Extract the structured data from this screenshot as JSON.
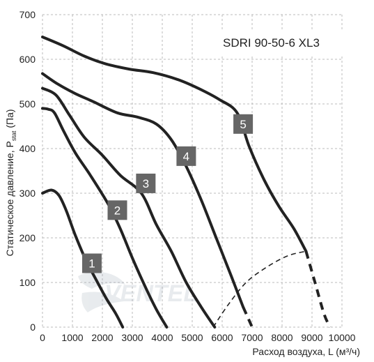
{
  "chart_data": {
    "type": "line",
    "title": "SDRI 90-50-6 XL3",
    "xlabel": "Расход воздуха, L (м³/ч)",
    "ylabel_main": "Статическое давление, P",
    "ylabel_sub": "stat",
    "ylabel_unit": "(Па)",
    "xlim": [
      0,
      10000
    ],
    "ylim": [
      0,
      700
    ],
    "x_ticks": [
      0,
      1000,
      2000,
      3000,
      4000,
      5000,
      6000,
      7000,
      8000,
      9000,
      10000
    ],
    "y_ticks": [
      0,
      100,
      200,
      300,
      400,
      500,
      600,
      700
    ],
    "grid": true,
    "series": [
      {
        "name": "1",
        "points": [
          [
            0,
            300
          ],
          [
            300,
            307
          ],
          [
            550,
            295
          ],
          [
            800,
            260
          ],
          [
            1100,
            205
          ],
          [
            1450,
            150
          ],
          [
            1800,
            105
          ],
          [
            2150,
            62
          ],
          [
            2450,
            30
          ],
          [
            2680,
            0
          ]
        ],
        "dash_points": [],
        "label_pos": [
          1650,
          143
        ]
      },
      {
        "name": "2",
        "points": [
          [
            0,
            490
          ],
          [
            200,
            488
          ],
          [
            400,
            480
          ],
          [
            700,
            440
          ],
          [
            1100,
            390
          ],
          [
            1600,
            340
          ],
          [
            2200,
            275
          ],
          [
            2600,
            220
          ],
          [
            3000,
            155
          ],
          [
            3400,
            95
          ],
          [
            3800,
            40
          ],
          [
            4150,
            0
          ]
        ],
        "dash_points": [],
        "label_pos": [
          2500,
          262
        ]
      },
      {
        "name": "3",
        "points": [
          [
            0,
            535
          ],
          [
            450,
            520
          ],
          [
            900,
            475
          ],
          [
            1400,
            425
          ],
          [
            2000,
            385
          ],
          [
            2600,
            340
          ],
          [
            3300,
            300
          ],
          [
            3800,
            230
          ],
          [
            4300,
            170
          ],
          [
            4800,
            100
          ],
          [
            5300,
            45
          ],
          [
            5750,
            0
          ]
        ],
        "dash_points": [],
        "label_pos": [
          3450,
          322
        ]
      },
      {
        "name": "4",
        "points": [
          [
            0,
            568
          ],
          [
            500,
            545
          ],
          [
            1100,
            523
          ],
          [
            1700,
            505
          ],
          [
            2500,
            480
          ],
          [
            3200,
            470
          ],
          [
            3800,
            455
          ],
          [
            4300,
            420
          ],
          [
            4800,
            360
          ],
          [
            5300,
            285
          ],
          [
            5800,
            200
          ],
          [
            6300,
            115
          ],
          [
            6700,
            45
          ]
        ],
        "dash_points": [
          [
            6700,
            45
          ],
          [
            7000,
            0
          ]
        ],
        "label_pos": [
          4800,
          383
        ]
      },
      {
        "name": "5",
        "points": [
          [
            0,
            650
          ],
          [
            700,
            630
          ],
          [
            1400,
            607
          ],
          [
            2100,
            590
          ],
          [
            2900,
            578
          ],
          [
            3700,
            570
          ],
          [
            4500,
            555
          ],
          [
            5200,
            535
          ],
          [
            5900,
            510
          ],
          [
            6500,
            480
          ],
          [
            6900,
            405
          ],
          [
            7400,
            330
          ],
          [
            7900,
            270
          ],
          [
            8400,
            220
          ],
          [
            8800,
            170
          ]
        ],
        "dash_points": [
          [
            8800,
            170
          ],
          [
            9100,
            100
          ],
          [
            9400,
            30
          ],
          [
            9600,
            0
          ]
        ],
        "label_pos": [
          6700,
          455
        ]
      }
    ],
    "dashed_region_curve": [
      [
        5700,
        0
      ],
      [
        6200,
        50
      ],
      [
        6800,
        100
      ],
      [
        7500,
        135
      ],
      [
        8200,
        160
      ],
      [
        8800,
        170
      ]
    ]
  }
}
